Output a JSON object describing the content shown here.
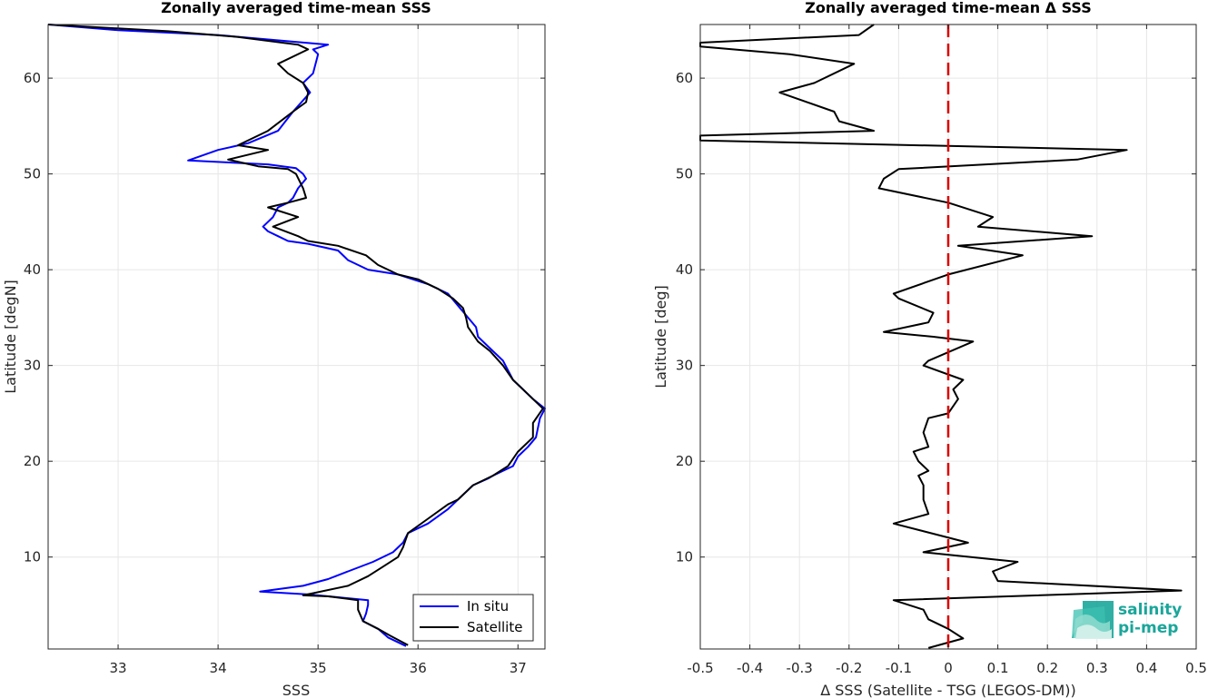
{
  "chart_data": [
    {
      "type": "line",
      "title": "Zonally averaged time-mean SSS",
      "xlabel": "SSS",
      "ylabel": "Latitude [degN]",
      "xlim": [
        32.3,
        37.27
      ],
      "ylim": [
        0.4,
        65.6
      ],
      "xticks": [
        33,
        34,
        35,
        36,
        37
      ],
      "yticks": [
        10,
        20,
        30,
        40,
        50,
        60
      ],
      "grid": true,
      "legend_position": "bottom-right",
      "series": [
        {
          "name": "In situ",
          "color": "#0000ff",
          "points": [
            [
              35.88,
              0.7
            ],
            [
              35.7,
              1.6
            ],
            [
              35.6,
              2.5
            ],
            [
              35.45,
              3.3
            ],
            [
              35.48,
              4.1
            ],
            [
              35.5,
              5.0
            ],
            [
              35.5,
              5.5
            ],
            [
              35.2,
              5.8
            ],
            [
              34.9,
              6.1
            ],
            [
              34.42,
              6.4
            ],
            [
              34.85,
              7.0
            ],
            [
              35.1,
              7.7
            ],
            [
              35.3,
              8.5
            ],
            [
              35.55,
              9.5
            ],
            [
              35.75,
              10.5
            ],
            [
              35.85,
              11.5
            ],
            [
              35.9,
              12.5
            ],
            [
              36.1,
              13.5
            ],
            [
              36.3,
              15.0
            ],
            [
              36.45,
              16.5
            ],
            [
              36.55,
              17.5
            ],
            [
              36.7,
              18.2
            ],
            [
              36.75,
              18.5
            ],
            [
              36.95,
              19.5
            ],
            [
              37.0,
              20.5
            ],
            [
              37.1,
              21.5
            ],
            [
              37.18,
              22.5
            ],
            [
              37.2,
              23.5
            ],
            [
              37.22,
              24.5
            ],
            [
              37.27,
              25.5
            ],
            [
              37.15,
              26.5
            ],
            [
              37.05,
              27.5
            ],
            [
              36.95,
              28.5
            ],
            [
              36.9,
              29.5
            ],
            [
              36.85,
              30.5
            ],
            [
              36.7,
              32.0
            ],
            [
              36.6,
              33.0
            ],
            [
              36.58,
              34.0
            ],
            [
              36.5,
              35.0
            ],
            [
              36.42,
              36.0
            ],
            [
              36.3,
              37.5
            ],
            [
              36.1,
              38.5
            ],
            [
              35.8,
              39.5
            ],
            [
              35.5,
              40.0
            ],
            [
              35.3,
              41.0
            ],
            [
              35.2,
              42.0
            ],
            [
              34.9,
              42.7
            ],
            [
              34.7,
              43.0
            ],
            [
              34.6,
              43.5
            ],
            [
              34.5,
              44.0
            ],
            [
              34.45,
              44.5
            ],
            [
              34.55,
              45.5
            ],
            [
              34.6,
              46.5
            ],
            [
              34.7,
              47.0
            ],
            [
              34.75,
              47.5
            ],
            [
              34.8,
              48.5
            ],
            [
              34.88,
              49.5
            ],
            [
              34.85,
              50.0
            ],
            [
              34.78,
              50.6
            ],
            [
              34.5,
              51.0
            ],
            [
              33.7,
              51.4
            ],
            [
              34.0,
              52.5
            ],
            [
              34.3,
              53.2
            ],
            [
              34.6,
              54.5
            ],
            [
              34.75,
              56.5
            ],
            [
              34.92,
              58.5
            ],
            [
              34.85,
              59.5
            ],
            [
              34.95,
              60.5
            ],
            [
              35.0,
              62.5
            ],
            [
              34.95,
              63.0
            ],
            [
              35.1,
              63.5
            ],
            [
              34.0,
              64.5
            ],
            [
              33.0,
              65.0
            ],
            [
              32.3,
              65.6
            ]
          ]
        },
        {
          "name": "Satellite",
          "color": "#000000",
          "points": [
            [
              35.9,
              0.8
            ],
            [
              35.72,
              1.8
            ],
            [
              35.6,
              2.5
            ],
            [
              35.45,
              3.3
            ],
            [
              35.4,
              4.5
            ],
            [
              35.4,
              5.5
            ],
            [
              35.1,
              5.9
            ],
            [
              34.85,
              6.0
            ],
            [
              35.3,
              7.0
            ],
            [
              35.5,
              8.0
            ],
            [
              35.65,
              9.0
            ],
            [
              35.8,
              10.0
            ],
            [
              35.85,
              11.0
            ],
            [
              35.9,
              12.5
            ],
            [
              36.1,
              14.0
            ],
            [
              36.3,
              15.5
            ],
            [
              36.4,
              16.0
            ],
            [
              36.5,
              17.0
            ],
            [
              36.55,
              17.5
            ],
            [
              36.75,
              18.5
            ],
            [
              36.9,
              19.5
            ],
            [
              37.0,
              21.0
            ],
            [
              37.1,
              22.0
            ],
            [
              37.15,
              22.5
            ],
            [
              37.15,
              24.0
            ],
            [
              37.25,
              25.5
            ],
            [
              37.1,
              27.0
            ],
            [
              36.95,
              28.5
            ],
            [
              36.85,
              30.0
            ],
            [
              36.72,
              31.5
            ],
            [
              36.6,
              32.5
            ],
            [
              36.5,
              34.0
            ],
            [
              36.48,
              35.0
            ],
            [
              36.45,
              36.0
            ],
            [
              36.35,
              37.0
            ],
            [
              36.2,
              38.0
            ],
            [
              36.0,
              39.0
            ],
            [
              35.8,
              39.5
            ],
            [
              35.6,
              40.5
            ],
            [
              35.48,
              41.5
            ],
            [
              35.2,
              42.5
            ],
            [
              34.9,
              43.0
            ],
            [
              34.8,
              43.5
            ],
            [
              34.55,
              44.5
            ],
            [
              34.8,
              45.5
            ],
            [
              34.5,
              46.5
            ],
            [
              34.7,
              47.0
            ],
            [
              34.88,
              47.5
            ],
            [
              34.85,
              48.5
            ],
            [
              34.78,
              50.0
            ],
            [
              34.7,
              50.5
            ],
            [
              34.4,
              50.8
            ],
            [
              34.1,
              51.5
            ],
            [
              34.5,
              52.5
            ],
            [
              34.2,
              53.0
            ],
            [
              34.5,
              54.5
            ],
            [
              34.75,
              56.5
            ],
            [
              34.88,
              57.5
            ],
            [
              34.9,
              58.5
            ],
            [
              34.85,
              59.5
            ],
            [
              34.7,
              60.5
            ],
            [
              34.6,
              61.5
            ],
            [
              34.9,
              63.0
            ],
            [
              34.8,
              63.5
            ],
            [
              34.2,
              64.3
            ],
            [
              33.5,
              64.9
            ],
            [
              32.3,
              65.6
            ]
          ]
        }
      ]
    },
    {
      "type": "line",
      "title": "Zonally averaged time-mean Δ SSS",
      "xlabel": "Δ SSS (Satellite - TSG (LEGOS-DM))",
      "ylabel": "Latitude [deg]",
      "xlim": [
        -0.5,
        0.5
      ],
      "ylim": [
        0.4,
        65.6
      ],
      "xticks": [
        -0.5,
        -0.4,
        -0.3,
        -0.2,
        -0.1,
        0,
        0.1,
        0.2,
        0.3,
        0.4,
        0.5
      ],
      "yticks": [
        10,
        20,
        30,
        40,
        50,
        60
      ],
      "grid": true,
      "reference_line": {
        "x": 0,
        "color": "#dd0000",
        "style": "dashed"
      },
      "series": [
        {
          "color": "#000000",
          "points": [
            [
              -0.04,
              0.5
            ],
            [
              0.03,
              1.5
            ],
            [
              0.0,
              2.5
            ],
            [
              -0.04,
              3.5
            ],
            [
              -0.05,
              4.5
            ],
            [
              -0.11,
              5.5
            ],
            [
              0.47,
              6.5
            ],
            [
              0.1,
              7.5
            ],
            [
              0.09,
              8.5
            ],
            [
              0.14,
              9.5
            ],
            [
              -0.05,
              10.5
            ],
            [
              0.04,
              11.5
            ],
            [
              -0.11,
              13.5
            ],
            [
              -0.04,
              14.5
            ],
            [
              -0.05,
              16.0
            ],
            [
              -0.05,
              17.5
            ],
            [
              -0.06,
              18.5
            ],
            [
              -0.04,
              19.0
            ],
            [
              -0.06,
              20.0
            ],
            [
              -0.07,
              21.0
            ],
            [
              -0.04,
              21.5
            ],
            [
              -0.05,
              23.0
            ],
            [
              -0.04,
              24.5
            ],
            [
              0.0,
              25.0
            ],
            [
              0.02,
              26.5
            ],
            [
              0.01,
              27.5
            ],
            [
              0.03,
              28.5
            ],
            [
              -0.05,
              30.0
            ],
            [
              -0.04,
              30.5
            ],
            [
              0.05,
              32.5
            ],
            [
              -0.03,
              33.0
            ],
            [
              -0.13,
              33.5
            ],
            [
              -0.04,
              34.5
            ],
            [
              -0.03,
              35.5
            ],
            [
              -0.1,
              37.0
            ],
            [
              -0.11,
              37.5
            ],
            [
              0.0,
              39.5
            ],
            [
              0.15,
              41.5
            ],
            [
              0.02,
              42.5
            ],
            [
              0.29,
              43.5
            ],
            [
              0.06,
              44.5
            ],
            [
              0.09,
              45.5
            ],
            [
              0.0,
              47.0
            ],
            [
              -0.14,
              48.5
            ],
            [
              -0.13,
              49.5
            ],
            [
              -0.1,
              50.5
            ],
            [
              0.26,
              51.5
            ],
            [
              0.36,
              52.5
            ],
            [
              -0.5,
              53.5
            ],
            [
              -0.5,
              54.0
            ],
            [
              -0.15,
              54.5
            ],
            [
              -0.22,
              55.5
            ],
            [
              -0.23,
              56.5
            ],
            [
              -0.34,
              58.5
            ],
            [
              -0.27,
              59.5
            ],
            [
              -0.19,
              61.5
            ],
            [
              -0.32,
              62.5
            ],
            [
              -0.5,
              63.3
            ],
            [
              -0.5,
              63.7
            ],
            [
              -0.18,
              64.5
            ],
            [
              -0.15,
              65.6
            ]
          ]
        }
      ]
    }
  ],
  "legend": {
    "items": [
      "In situ",
      "Satellite"
    ]
  },
  "logo": {
    "line1": "salinity",
    "line2": "pi-mep"
  }
}
